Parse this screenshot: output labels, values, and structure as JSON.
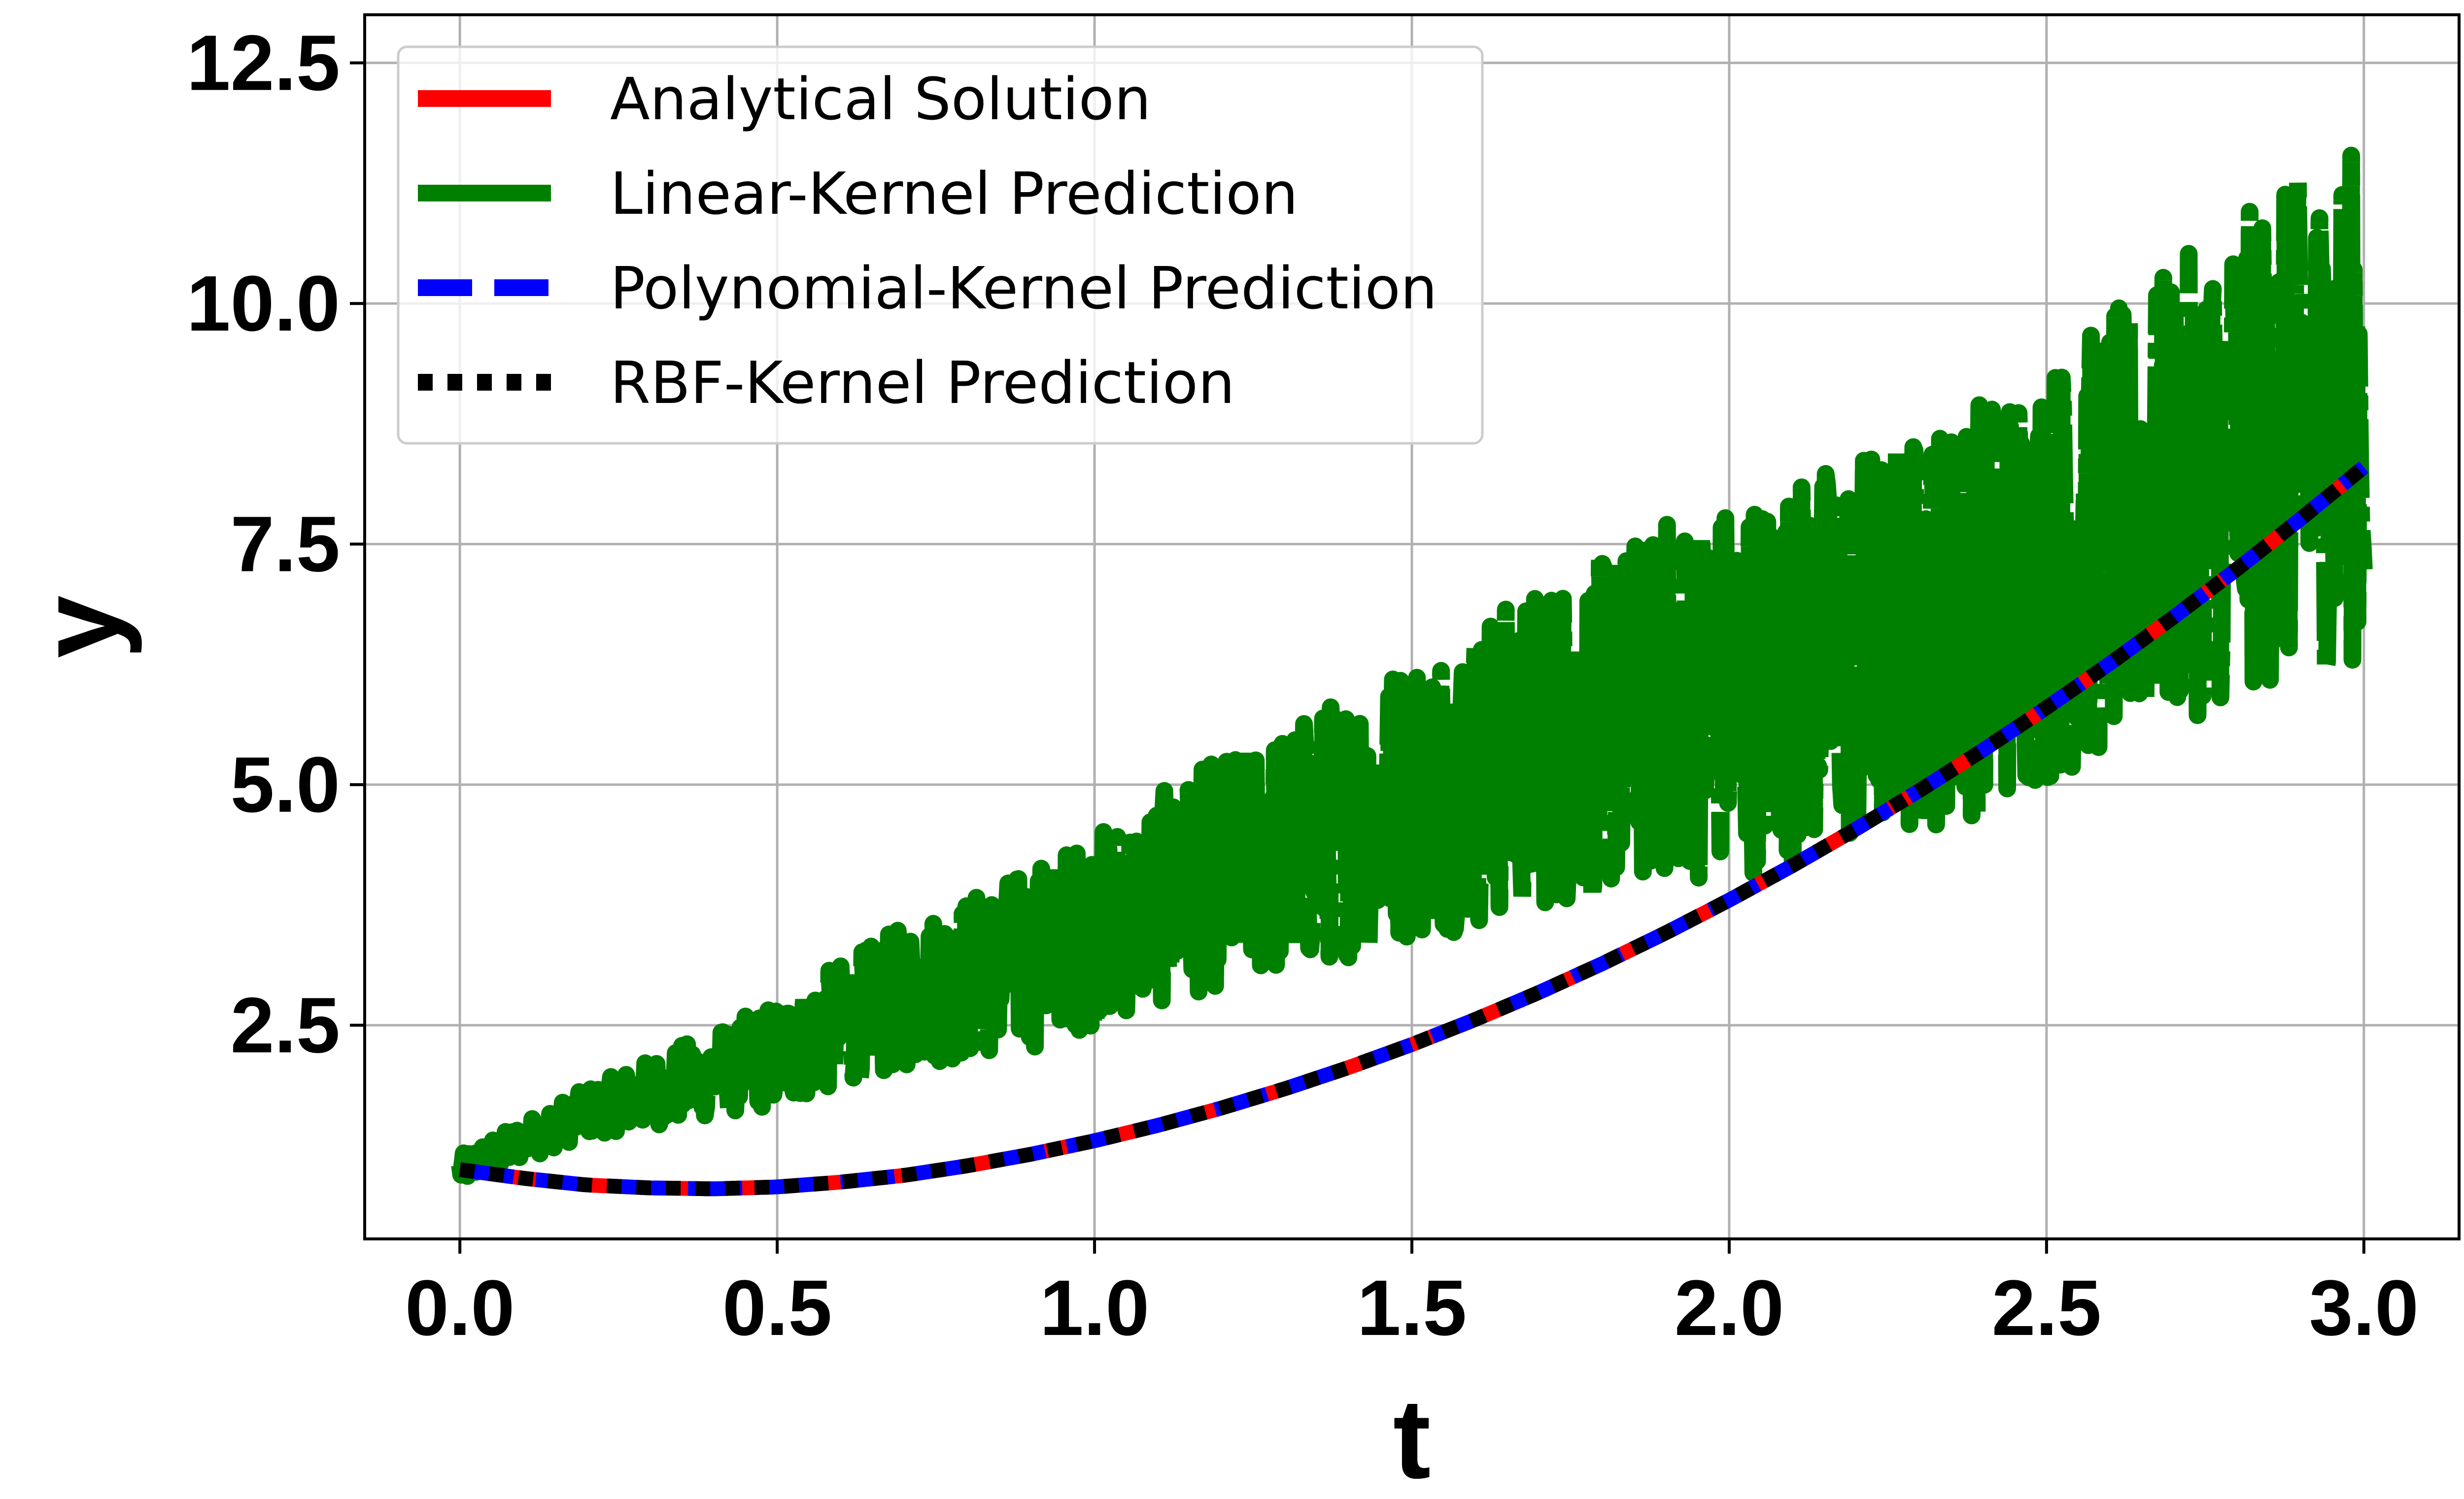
{
  "chart_data": {
    "type": "line",
    "title": "",
    "xlabel": "t",
    "ylabel": "y",
    "xlim": [
      -0.15,
      3.15
    ],
    "ylim": [
      0.28,
      13.0
    ],
    "grid": true,
    "legend_position": "top-left",
    "x_ticks": [
      {
        "value": 0.0,
        "label": "0.0"
      },
      {
        "value": 0.5,
        "label": "0.5"
      },
      {
        "value": 1.0,
        "label": "1.0"
      },
      {
        "value": 1.5,
        "label": "1.5"
      },
      {
        "value": 2.0,
        "label": "2.0"
      },
      {
        "value": 2.5,
        "label": "2.5"
      },
      {
        "value": 3.0,
        "label": "3.0"
      }
    ],
    "y_ticks": [
      {
        "value": 2.5,
        "label": "2.5"
      },
      {
        "value": 5.0,
        "label": "5.0"
      },
      {
        "value": 7.5,
        "label": "7.5"
      },
      {
        "value": 10.0,
        "label": "10.0"
      },
      {
        "value": 12.5,
        "label": "12.5"
      }
    ],
    "series": [
      {
        "name": "Analytical Solution",
        "color": "#ff0000",
        "style": "solid",
        "x": [
          0.0,
          0.1,
          0.2,
          0.3,
          0.4,
          0.5,
          0.6,
          0.7,
          0.8,
          0.9,
          1.0,
          1.1,
          1.2,
          1.3,
          1.4,
          1.5,
          1.6,
          1.7,
          1.8,
          1.9,
          2.0,
          2.1,
          2.2,
          2.3,
          2.4,
          2.5,
          2.6,
          2.7,
          2.8,
          2.9,
          3.0
        ],
        "y": [
          1.0,
          0.91,
          0.84,
          0.81,
          0.8,
          0.82,
          0.87,
          0.94,
          1.04,
          1.16,
          1.3,
          1.46,
          1.64,
          1.84,
          2.06,
          2.3,
          2.56,
          2.84,
          3.14,
          3.46,
          3.8,
          4.16,
          4.54,
          4.94,
          5.36,
          5.8,
          6.26,
          6.74,
          7.24,
          7.76,
          8.3
        ]
      },
      {
        "name": "Linear-Kernel Prediction",
        "color": "#008000",
        "style": "noisy",
        "x": [
          0.0,
          0.1,
          0.2,
          0.3,
          0.4,
          0.5,
          0.6,
          0.7,
          0.8,
          0.9,
          1.0,
          1.1,
          1.2,
          1.3,
          1.4,
          1.5,
          1.6,
          1.7,
          1.8,
          1.9,
          2.0,
          2.1,
          2.2,
          2.3,
          2.4,
          2.5,
          2.6,
          2.7,
          2.8,
          2.9,
          3.0
        ],
        "y": [
          1.0,
          1.3,
          1.6,
          1.8,
          2.0,
          2.2,
          2.5,
          2.8,
          3.0,
          3.2,
          3.5,
          3.8,
          4.1,
          4.3,
          4.6,
          4.9,
          5.1,
          5.4,
          5.6,
          5.9,
          6.0,
          6.2,
          6.4,
          6.6,
          6.9,
          7.2,
          7.6,
          8.0,
          8.4,
          8.7,
          9.0
        ],
        "noise_amplitude": [
          0.15,
          0.2,
          0.25,
          0.35,
          0.45,
          0.55,
          0.65,
          0.75,
          0.85,
          0.95,
          1.0,
          1.1,
          1.2,
          1.3,
          1.4,
          1.5,
          1.6,
          1.7,
          1.8,
          1.9,
          2.0,
          2.0,
          2.1,
          2.1,
          2.2,
          2.2,
          2.3,
          2.4,
          2.5,
          2.6,
          2.7
        ]
      },
      {
        "name": "Polynomial-Kernel Prediction",
        "color": "#0000ff",
        "style": "dashed",
        "x": [
          0.0,
          0.1,
          0.2,
          0.3,
          0.4,
          0.5,
          0.6,
          0.7,
          0.8,
          0.9,
          1.0,
          1.1,
          1.2,
          1.3,
          1.4,
          1.5,
          1.6,
          1.7,
          1.8,
          1.9,
          2.0,
          2.1,
          2.2,
          2.3,
          2.4,
          2.5,
          2.6,
          2.7,
          2.8,
          2.9,
          3.0
        ],
        "y": [
          1.0,
          0.91,
          0.84,
          0.81,
          0.8,
          0.82,
          0.87,
          0.94,
          1.04,
          1.16,
          1.3,
          1.46,
          1.64,
          1.84,
          2.06,
          2.3,
          2.56,
          2.84,
          3.14,
          3.46,
          3.8,
          4.16,
          4.54,
          4.94,
          5.36,
          5.8,
          6.26,
          6.74,
          7.24,
          7.76,
          8.3
        ]
      },
      {
        "name": "RBF-Kernel Prediction",
        "color": "#000000",
        "style": "dotted",
        "x": [
          0.0,
          0.1,
          0.2,
          0.3,
          0.4,
          0.5,
          0.6,
          0.7,
          0.8,
          0.9,
          1.0,
          1.1,
          1.2,
          1.3,
          1.4,
          1.5,
          1.6,
          1.7,
          1.8,
          1.9,
          2.0,
          2.1,
          2.2,
          2.3,
          2.4,
          2.5,
          2.6,
          2.7,
          2.8,
          2.9,
          3.0
        ],
        "y": [
          1.0,
          0.91,
          0.84,
          0.81,
          0.8,
          0.82,
          0.87,
          0.94,
          1.04,
          1.16,
          1.3,
          1.46,
          1.64,
          1.84,
          2.06,
          2.3,
          2.56,
          2.84,
          3.14,
          3.46,
          3.8,
          4.16,
          4.54,
          4.94,
          5.36,
          5.8,
          6.26,
          6.74,
          7.24,
          7.76,
          8.3
        ]
      }
    ]
  }
}
